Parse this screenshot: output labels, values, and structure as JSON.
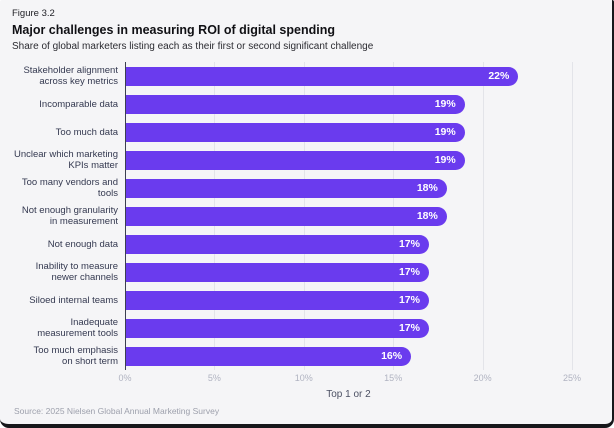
{
  "header": {
    "figure_label": "Figure 3.2",
    "title": "Major challenges in measuring ROI of digital spending",
    "subtitle": "Share of global marketers listing each as their first or second significant challenge"
  },
  "chart_data": {
    "type": "bar",
    "orientation": "horizontal",
    "title": "Major challenges in measuring ROI of digital spending",
    "subtitle": "Share of global marketers listing each as their first or second significant challenge",
    "categories": [
      "Stakeholder alignment\nacross key metrics",
      "Incomparable data",
      "Too much data",
      "Unclear which marketing\nKPIs matter",
      "Too many vendors and\ntools",
      "Not enough granularity\nin measurement",
      "Not enough data",
      "Inability to measure\nnewer channels",
      "Siloed internal teams",
      "Inadequate\nmeasurement tools",
      "Too much emphasis\non short term"
    ],
    "values": [
      22,
      19,
      19,
      19,
      18,
      18,
      17,
      17,
      17,
      17,
      16
    ],
    "value_labels": [
      "22%",
      "19%",
      "19%",
      "19%",
      "18%",
      "18%",
      "17%",
      "17%",
      "17%",
      "17%",
      "16%"
    ],
    "xlabel": "Top 1 or 2",
    "x_tick_values": [
      0,
      5,
      10,
      15,
      20,
      25
    ],
    "x_tick_labels": [
      "0%",
      "5%",
      "10%",
      "15%",
      "20%",
      "25%"
    ],
    "xlim": [
      0,
      26.6
    ],
    "grid": "vertical",
    "legend": "none",
    "bar_color": "#6A3BEE",
    "value_label_color": "#FFFFFF",
    "axis_line_color": "#3C3F50",
    "gridline_color": "#E3E4E9",
    "background_color": "#F5F5F7"
  },
  "footer": {
    "source": "Source: 2025 Nielsen Global Annual Marketing Survey"
  }
}
